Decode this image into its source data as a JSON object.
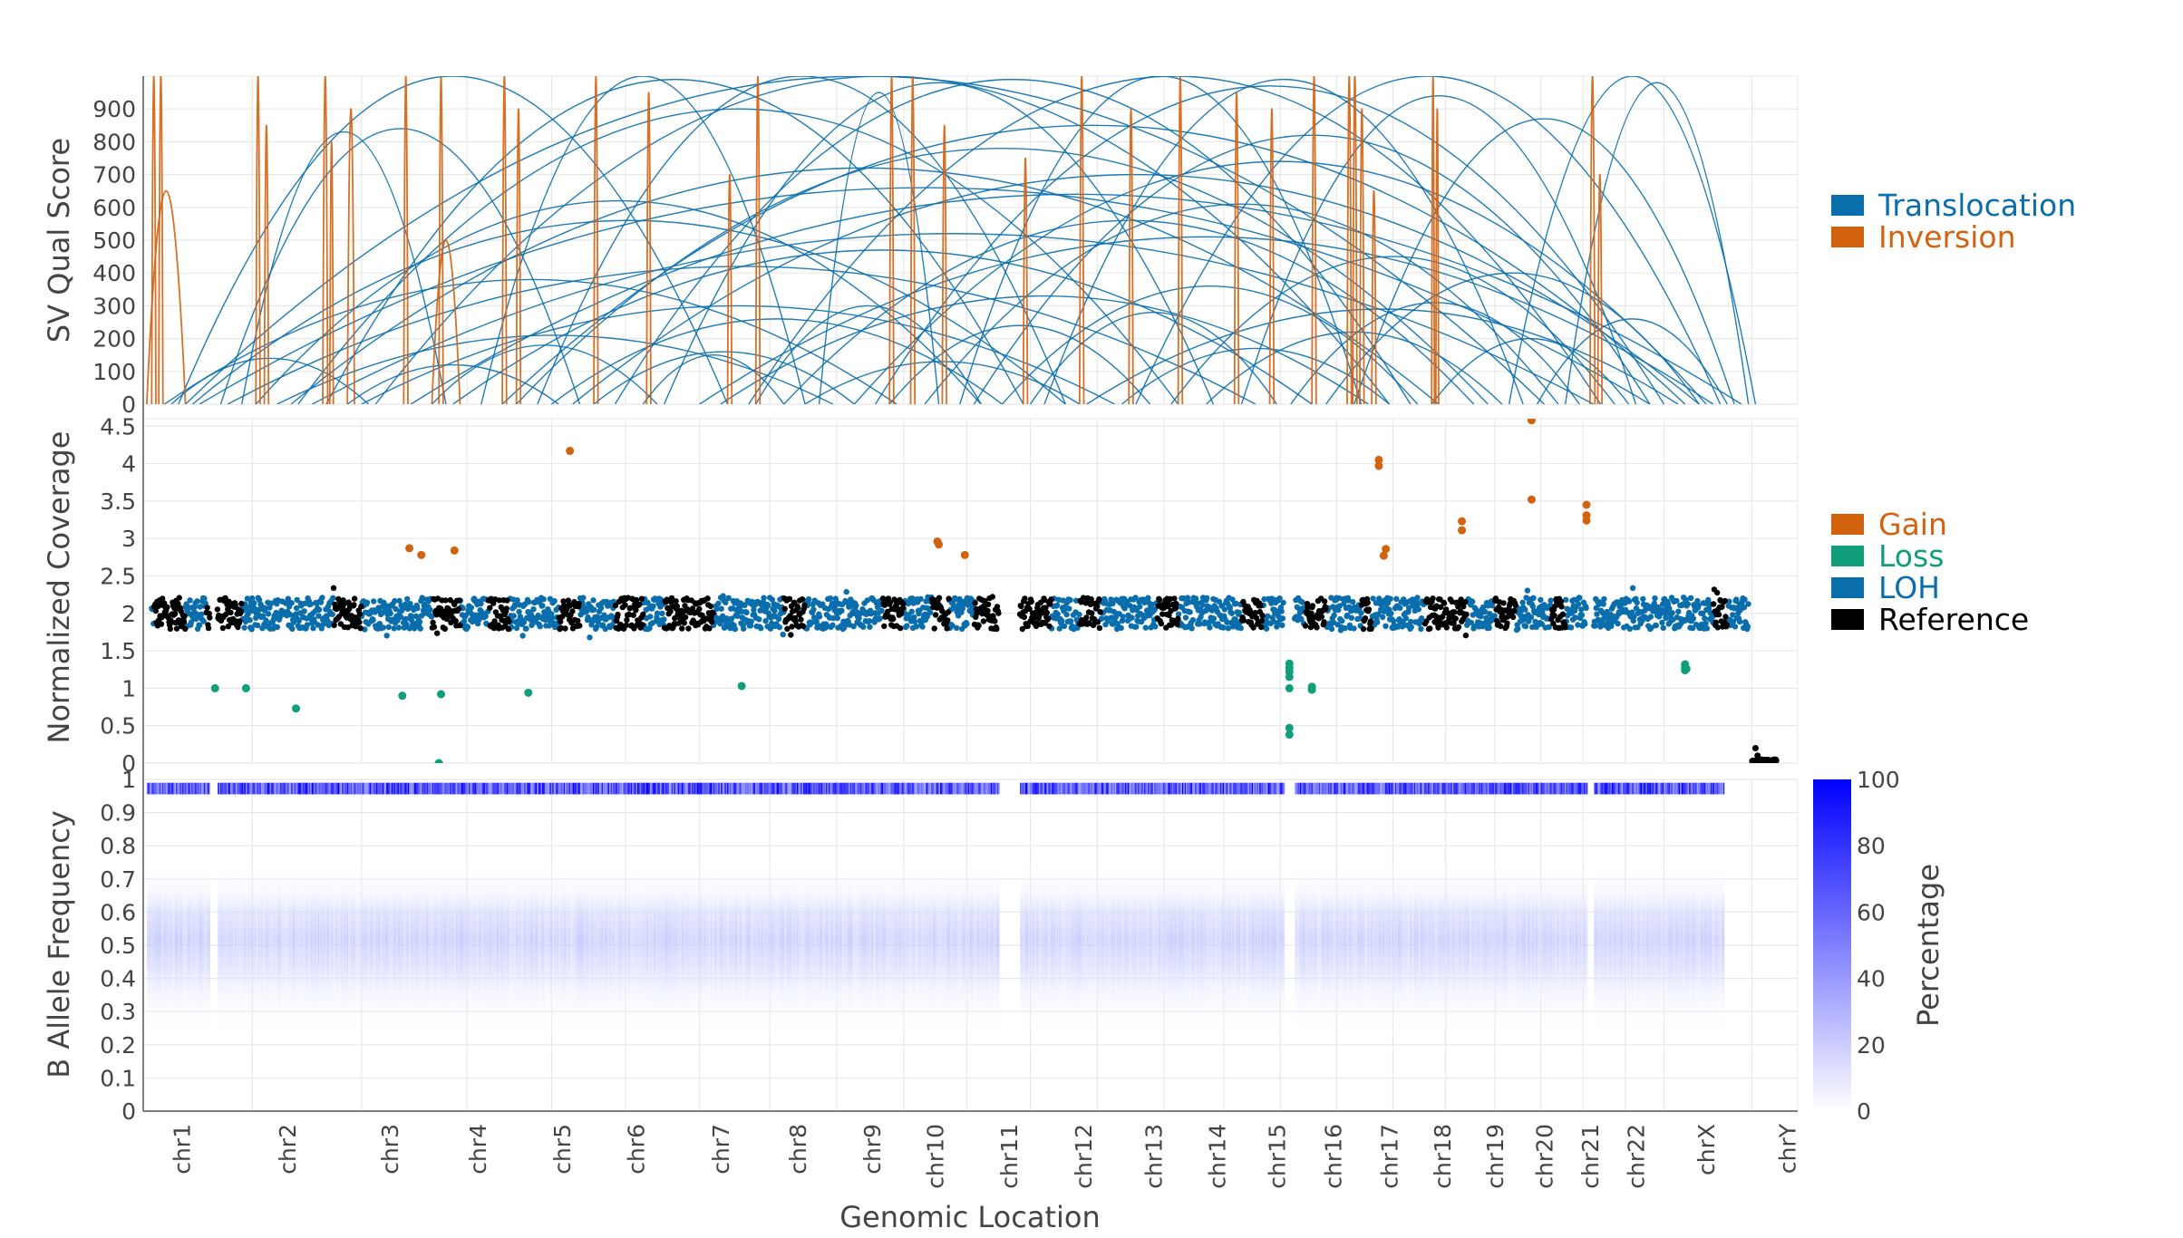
{
  "colors": {
    "translocation": "#0a6ead",
    "inversion": "#d3620f",
    "gain": "#d3620f",
    "loss": "#119e7a",
    "loh": "#0a6ead",
    "reference": "#000000",
    "baf_max": "#0000ff",
    "text": "#444444",
    "grid": "#e8e8e8"
  },
  "chart_data": [
    {
      "type": "arc",
      "panel": "sv",
      "ylabel": "SV Qual Score",
      "ylim": [
        0,
        1000
      ],
      "yticks": [
        0,
        100,
        200,
        300,
        400,
        500,
        600,
        700,
        800,
        900
      ],
      "legend": [
        {
          "name": "Translocation",
          "color": "#0a6ead"
        },
        {
          "name": "Inversion",
          "color": "#d3620f"
        }
      ],
      "series": [
        {
          "name": "Translocation",
          "arcs": [
            [
              0.5,
              8.3,
              1000
            ],
            [
              0.6,
              19.9,
              1000
            ],
            [
              1.1,
              6.2,
              840
            ],
            [
              1.4,
              4.3,
              830
            ],
            [
              1.6,
              11.9,
              620
            ],
            [
              2.2,
              14.7,
              900
            ],
            [
              2.6,
              12.5,
              990
            ],
            [
              3.3,
              17.7,
              1000
            ],
            [
              4.8,
              9.4,
              1000
            ],
            [
              5.1,
              21.9,
              850
            ],
            [
              5.6,
              13.1,
              1000
            ],
            [
              6.7,
              18.0,
              990
            ],
            [
              7.4,
              15.2,
              980
            ],
            [
              8.6,
              20.7,
              1000
            ],
            [
              9.6,
              11.3,
              950
            ],
            [
              10.4,
              21.6,
              970
            ],
            [
              11.6,
              17.3,
              1000
            ],
            [
              12.8,
              19.6,
              990
            ],
            [
              14.1,
              22.4,
              1000
            ],
            [
              15.6,
              21.2,
              940
            ],
            [
              17.2,
              22.6,
              870
            ],
            [
              19.4,
              22.9,
              1000
            ],
            [
              20.2,
              22.8,
              980
            ],
            [
              3.8,
              22.7,
              640
            ],
            [
              0.8,
              21.4,
              660
            ],
            [
              2.4,
              20.6,
              520
            ],
            [
              6.1,
              22.1,
              700
            ],
            [
              9.1,
              18.9,
              560
            ],
            [
              1.2,
              15.8,
              420
            ],
            [
              4.4,
              16.6,
              470
            ],
            [
              7.9,
              22.3,
              510
            ],
            [
              11.1,
              20.1,
              610
            ],
            [
              0.3,
              10.7,
              380
            ],
            [
              3.1,
              13.8,
              300
            ],
            [
              5.8,
              12.2,
              260
            ],
            [
              8.2,
              17.4,
              330
            ],
            [
              10.6,
              14.3,
              240
            ],
            [
              12.2,
              18.1,
              360
            ],
            [
              13.4,
              21.8,
              290
            ],
            [
              15.1,
              19.3,
              220
            ],
            [
              16.3,
              20.4,
              310
            ],
            [
              1.9,
              9.8,
              210
            ],
            [
              4.1,
              7.3,
              180
            ],
            [
              6.4,
              10.1,
              160
            ],
            [
              0.4,
              3.2,
              140
            ],
            [
              2.9,
              5.9,
              120
            ],
            [
              7.1,
              9.1,
              150
            ],
            [
              9.4,
              13.3,
              130
            ],
            [
              13.9,
              17.7,
              170
            ],
            [
              18.3,
              21.1,
              200
            ],
            [
              19.8,
              22.5,
              260
            ],
            [
              16.8,
              22.1,
              400
            ],
            [
              14.6,
              20.9,
              450
            ],
            [
              12.6,
              16.1,
              280
            ],
            [
              8.7,
              11.9,
              300
            ],
            [
              5.3,
              19.1,
              780
            ],
            [
              2.1,
              18.4,
              720
            ],
            [
              10.1,
              22.2,
              740
            ],
            [
              0.7,
              13.1,
              560
            ],
            [
              11.8,
              21.4,
              820
            ]
          ]
        },
        {
          "name": "Inversion",
          "arcs": [
            [
              0.12,
              0.18,
              1000
            ],
            [
              0.22,
              0.28,
              1000
            ],
            [
              0.05,
              0.6,
              650
            ],
            [
              1.6,
              1.66,
              1000
            ],
            [
              1.72,
              1.78,
              850
            ],
            [
              2.55,
              2.62,
              1000
            ],
            [
              2.65,
              2.7,
              800
            ],
            [
              2.9,
              3.0,
              900
            ],
            [
              3.7,
              3.76,
              1000
            ],
            [
              4.2,
              4.26,
              1000
            ],
            [
              4.1,
              4.5,
              500
            ],
            [
              5.1,
              5.16,
              1000
            ],
            [
              5.3,
              5.36,
              900
            ],
            [
              6.4,
              6.46,
              1000
            ],
            [
              7.15,
              7.21,
              950
            ],
            [
              8.3,
              8.36,
              700
            ],
            [
              8.7,
              8.76,
              1000
            ],
            [
              10.6,
              10.66,
              1000
            ],
            [
              10.9,
              10.96,
              1000
            ],
            [
              11.35,
              11.41,
              850
            ],
            [
              12.5,
              12.56,
              750
            ],
            [
              13.3,
              13.36,
              1000
            ],
            [
              14.0,
              14.06,
              900
            ],
            [
              14.7,
              14.76,
              1000
            ],
            [
              15.5,
              15.56,
              950
            ],
            [
              16.0,
              16.06,
              900
            ],
            [
              16.6,
              16.66,
              1000
            ],
            [
              17.1,
              17.16,
              1000
            ],
            [
              17.18,
              17.24,
              1000
            ],
            [
              17.28,
              17.34,
              900
            ],
            [
              17.45,
              17.51,
              650
            ],
            [
              18.3,
              18.34,
              1000
            ],
            [
              18.36,
              18.4,
              900
            ],
            [
              20.55,
              20.62,
              1000
            ],
            [
              20.66,
              20.72,
              700
            ]
          ]
        }
      ]
    },
    {
      "type": "scatter",
      "panel": "coverage",
      "ylabel": "Normalized Coverage",
      "ylim": [
        0,
        4.6
      ],
      "yticks": [
        0,
        0.5,
        1,
        1.5,
        2,
        2.5,
        3,
        3.5,
        4,
        4.5
      ],
      "ytick_labels": [
        "0",
        "0.5",
        "1",
        "1.5",
        "2",
        "2.5",
        "3",
        "3.5",
        "4",
        "4.5"
      ],
      "legend": [
        {
          "name": "Gain",
          "color": "#d3620f"
        },
        {
          "name": "Loss",
          "color": "#119e7a"
        },
        {
          "name": "LOH",
          "color": "#0a6ead"
        },
        {
          "name": "Reference",
          "color": "#000000"
        }
      ],
      "reference_segments": [
        [
          0.15,
          0.6
        ],
        [
          0.9,
          1.4
        ],
        [
          2.7,
          3.1
        ],
        [
          4.1,
          4.5
        ],
        [
          4.9,
          5.2
        ],
        [
          5.9,
          6.2
        ],
        [
          6.7,
          7.1
        ],
        [
          7.4,
          8.1
        ],
        [
          9.1,
          9.4
        ],
        [
          10.5,
          10.8
        ],
        [
          11.2,
          11.45
        ],
        [
          11.8,
          12.9
        ],
        [
          13.3,
          13.6
        ],
        [
          14.4,
          14.7
        ],
        [
          15.6,
          15.9
        ],
        [
          16.5,
          16.8
        ],
        [
          17.3,
          17.45
        ],
        [
          18.2,
          18.8
        ],
        [
          19.2,
          19.5
        ],
        [
          20.0,
          20.2
        ],
        [
          22.3,
          22.5
        ]
      ],
      "gain_points": [
        [
          6.06,
          4.17
        ],
        [
          3.78,
          2.87
        ],
        [
          3.95,
          2.78
        ],
        [
          4.42,
          2.84
        ],
        [
          11.28,
          2.96
        ],
        [
          11.3,
          2.92
        ],
        [
          11.67,
          2.78
        ],
        [
          17.55,
          4.05
        ],
        [
          17.55,
          3.97
        ],
        [
          17.65,
          2.86
        ],
        [
          17.62,
          2.77
        ],
        [
          18.73,
          3.23
        ],
        [
          18.73,
          3.11
        ],
        [
          19.72,
          4.58
        ],
        [
          19.72,
          3.52
        ],
        [
          20.5,
          3.45
        ],
        [
          20.5,
          3.31
        ],
        [
          20.5,
          3.24
        ]
      ],
      "loss_points": [
        [
          1.02,
          1.0
        ],
        [
          1.46,
          1.0
        ],
        [
          2.17,
          0.73
        ],
        [
          3.68,
          0.9
        ],
        [
          4.23,
          0.92
        ],
        [
          4.2,
          0.0
        ],
        [
          5.47,
          0.94
        ],
        [
          8.5,
          1.03
        ],
        [
          16.28,
          1.33
        ],
        [
          16.28,
          1.27
        ],
        [
          16.28,
          1.22
        ],
        [
          16.28,
          1.15
        ],
        [
          16.28,
          1.0
        ],
        [
          16.28,
          0.47
        ],
        [
          16.28,
          0.38
        ],
        [
          16.6,
          1.02
        ],
        [
          16.6,
          0.98
        ],
        [
          21.9,
          1.32
        ],
        [
          21.9,
          1.28
        ],
        [
          21.9,
          1.24
        ],
        [
          21.92,
          1.26
        ]
      ],
      "chrY_points": [
        [
          22.9,
          0.2
        ],
        [
          22.93,
          0.1
        ],
        [
          22.95,
          0.03
        ]
      ]
    },
    {
      "type": "heatmap",
      "panel": "baf",
      "ylabel": "B Allele Frequency",
      "xlabel": "Genomic Location",
      "ylim": [
        0,
        1
      ],
      "yticks": [
        0,
        0.1,
        0.2,
        0.3,
        0.4,
        0.5,
        0.6,
        0.7,
        0.8,
        0.9,
        1
      ],
      "colorbar": {
        "title": "Percentage",
        "range": [
          0,
          100
        ],
        "ticks": [
          0,
          20,
          40,
          60,
          80,
          100
        ]
      },
      "gaps": [
        [
          0.95,
          1.05
        ],
        [
          12.15,
          12.45
        ],
        [
          16.2,
          16.35
        ],
        [
          20.5,
          20.6
        ]
      ],
      "no_data_after": 22.45
    }
  ],
  "x_axis": {
    "label": "Genomic Location",
    "range": [
      0,
      23.5
    ],
    "chromosomes": [
      {
        "label": "chr1",
        "pos": 0.55
      },
      {
        "label": "chr2",
        "pos": 2.05
      },
      {
        "label": "chr3",
        "pos": 3.5
      },
      {
        "label": "chr4",
        "pos": 4.75
      },
      {
        "label": "chr5",
        "pos": 5.95
      },
      {
        "label": "chr6",
        "pos": 7.0
      },
      {
        "label": "chr7",
        "pos": 8.2
      },
      {
        "label": "chr8",
        "pos": 9.3
      },
      {
        "label": "chr9",
        "pos": 10.35
      },
      {
        "label": "chr10",
        "pos": 11.25
      },
      {
        "label": "chr11",
        "pos": 12.3
      },
      {
        "label": "chr12",
        "pos": 13.35
      },
      {
        "label": "chr13",
        "pos": 14.35
      },
      {
        "label": "chr14",
        "pos": 15.25
      },
      {
        "label": "chr15",
        "pos": 16.1
      },
      {
        "label": "chr16",
        "pos": 16.9
      },
      {
        "label": "chr17",
        "pos": 17.7
      },
      {
        "label": "chr18",
        "pos": 18.45
      },
      {
        "label": "chr19",
        "pos": 19.2
      },
      {
        "label": "chr20",
        "pos": 19.9
      },
      {
        "label": "chr21",
        "pos": 20.55
      },
      {
        "label": "chr22",
        "pos": 21.2
      },
      {
        "label": "chrX",
        "pos": 22.2
      },
      {
        "label": "chrY",
        "pos": 23.35
      }
    ],
    "boundaries": [
      1.55,
      3.1,
      4.6,
      5.8,
      6.85,
      7.9,
      8.9,
      9.85,
      10.8,
      11.7,
      12.6,
      13.55,
      14.5,
      15.35,
      16.15,
      16.95,
      17.75,
      18.5,
      19.2,
      19.85,
      20.45,
      21.05,
      21.6,
      22.85
    ]
  }
}
